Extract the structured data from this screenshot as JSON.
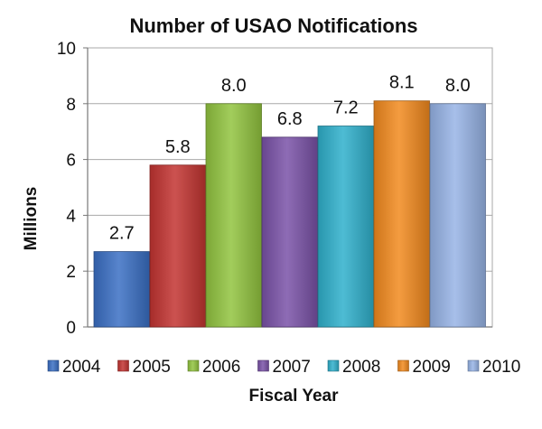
{
  "chart_data": {
    "type": "bar",
    "title": "Number of USAO Notifications",
    "xlabel": "Fiscal Year",
    "ylabel": "Millions",
    "categories": [
      "2004",
      "2005",
      "2006",
      "2007",
      "2008",
      "2009",
      "2010"
    ],
    "values": [
      2.7,
      5.8,
      8.0,
      6.8,
      7.2,
      8.1,
      8.0
    ],
    "data_labels": [
      "2.7",
      "5.8",
      "8.0",
      "6.8",
      "7.2",
      "8.1",
      "8.0"
    ],
    "colors": [
      "#3a6fc4",
      "#c33431",
      "#92c43f",
      "#7a52a8",
      "#2fb0cc",
      "#f28a1e",
      "#97b4e6"
    ],
    "ylim": [
      0,
      10
    ],
    "yticks": [
      0,
      2,
      4,
      6,
      8,
      10
    ],
    "grid": true,
    "legend_position": "bottom"
  }
}
